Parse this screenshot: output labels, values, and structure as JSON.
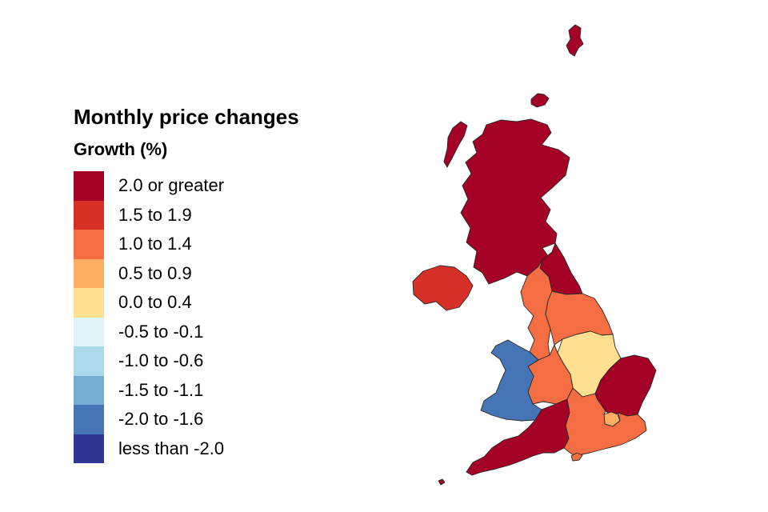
{
  "legend": {
    "title": "Monthly price changes",
    "subtitle": "Growth (%)",
    "items": [
      {
        "label": "2.0 or greater",
        "color": "#a50026"
      },
      {
        "label": "1.5 to 1.9",
        "color": "#d73027"
      },
      {
        "label": "1.0 to 1.4",
        "color": "#f46d43"
      },
      {
        "label": "0.5 to 0.9",
        "color": "#fdae61"
      },
      {
        "label": "0.0 to 0.4",
        "color": "#fee090"
      },
      {
        "label": "-0.5 to -0.1",
        "color": "#e0f3f8"
      },
      {
        "label": "-1.0 to -0.6",
        "color": "#abd9e9"
      },
      {
        "label": "-1.5 to -1.1",
        "color": "#74add1"
      },
      {
        "label": "-2.0 to -1.6",
        "color": "#4575b4"
      },
      {
        "label": "less than -2.0",
        "color": "#313695"
      }
    ]
  },
  "regions": [
    {
      "id": "scotland",
      "band": 0
    },
    {
      "id": "north-east",
      "band": 0
    },
    {
      "id": "northern-ireland",
      "band": 1
    },
    {
      "id": "north-west",
      "band": 2
    },
    {
      "id": "yorkshire-and-the-humber",
      "band": 2
    },
    {
      "id": "east-midlands",
      "band": 4
    },
    {
      "id": "west-midlands",
      "band": 2
    },
    {
      "id": "wales",
      "band": 8
    },
    {
      "id": "east-of-england",
      "band": 0
    },
    {
      "id": "london",
      "band": 3
    },
    {
      "id": "south-east",
      "band": 2
    },
    {
      "id": "south-west",
      "band": 0
    }
  ]
}
